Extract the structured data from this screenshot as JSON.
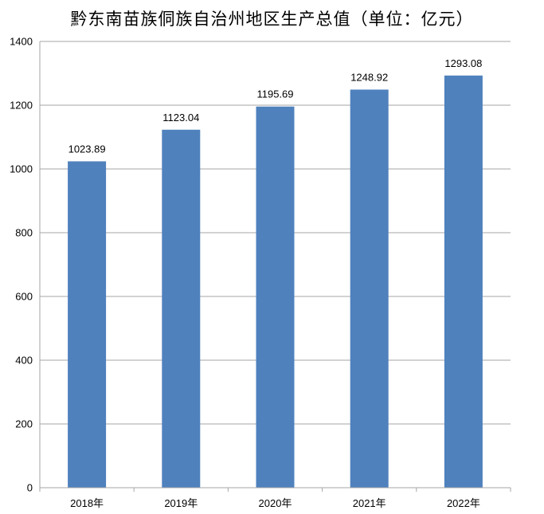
{
  "chart_data": {
    "type": "bar",
    "title": "黔东南苗族侗族自治州地区生产总值（单位：亿元）",
    "categories": [
      "2018年",
      "2019年",
      "2020年",
      "2021年",
      "2022年"
    ],
    "values": [
      1023.89,
      1123.04,
      1195.69,
      1248.92,
      1293.08
    ],
    "data_labels": [
      "1023.89",
      "1123.04",
      "1195.69",
      "1248.92",
      "1293.08"
    ],
    "ylim": [
      0,
      1400
    ],
    "yticks": [
      0,
      200,
      400,
      600,
      800,
      1000,
      1200,
      1400
    ],
    "xlabel": "",
    "ylabel": "",
    "grid": true,
    "legend": "none",
    "bar_color": "#4F81BD",
    "grid_color": "#A6A6A6"
  }
}
